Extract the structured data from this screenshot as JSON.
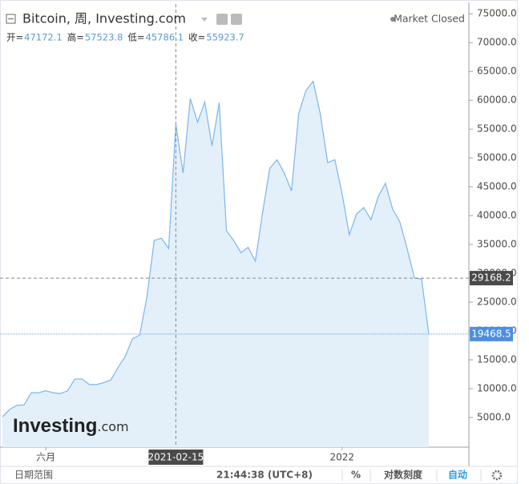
{
  "header": {
    "title": "Bitcoin, 周, Investing.com",
    "status": "Market Closed",
    "ohlc": [
      {
        "label": "开=",
        "value": 47172.1
      },
      {
        "label": "高=",
        "value": 57523.8
      },
      {
        "label": "低=",
        "value": 45786.1
      },
      {
        "label": "收=",
        "value": 55923.7
      }
    ]
  },
  "chart_data": {
    "type": "area",
    "values": [
      5100,
      6400,
      7100,
      7200,
      9300,
      9300,
      9650,
      9300,
      9150,
      9600,
      11650,
      11700,
      10750,
      10700,
      11050,
      11500,
      13700,
      15600,
      18650,
      19300,
      25900,
      35700,
      36100,
      34300,
      55800,
      47400,
      60300,
      56200,
      59700,
      52100,
      59600,
      37400,
      35700,
      33600,
      34500,
      32100,
      40500,
      48200,
      49700,
      47400,
      44300,
      57700,
      61700,
      63300,
      57600,
      49200,
      49700,
      43800,
      36700,
      40300,
      41400,
      39300,
      43300,
      45600,
      41100,
      38900,
      34300,
      29200,
      29000,
      19468.5
    ],
    "color": "#7cb5ec",
    "fill": "#e3f0fa",
    "ylim": [
      0,
      76700
    ],
    "yticks": [
      {
        "value": 5000,
        "label": "5000.0"
      },
      {
        "value": 10000,
        "label": "10000.0"
      },
      {
        "value": 15000,
        "label": "15000.0"
      },
      {
        "value": 20000,
        "label": "20000.0"
      },
      {
        "value": 25000,
        "label": "25000.0"
      },
      {
        "value": 30000,
        "label": "30000.0"
      },
      {
        "value": 35000,
        "label": "35000.0"
      },
      {
        "value": 40000,
        "label": "40000.0"
      },
      {
        "value": 45000,
        "label": "45000.0"
      },
      {
        "value": 50000,
        "label": "50000.0"
      },
      {
        "value": 55000,
        "label": "55000.0"
      },
      {
        "value": 60000,
        "label": "60000.0"
      },
      {
        "value": 65000,
        "label": "65000.0"
      },
      {
        "value": 70000,
        "label": "70000.0"
      },
      {
        "value": 75000,
        "label": "75000.0"
      }
    ],
    "xticks": [
      {
        "value": 6,
        "label": "六月"
      },
      {
        "value": 47,
        "label": "2022"
      }
    ],
    "crosshair": {
      "x": {
        "value": 24,
        "label": "2021-02-15"
      },
      "y": 29168.2
    }
  },
  "watermark": [
    "Investing",
    ".com"
  ],
  "toolbar": [
    "日期范围",
    "21:44:38 (UTC+8)",
    "%",
    "对数刻度",
    "自动"
  ]
}
